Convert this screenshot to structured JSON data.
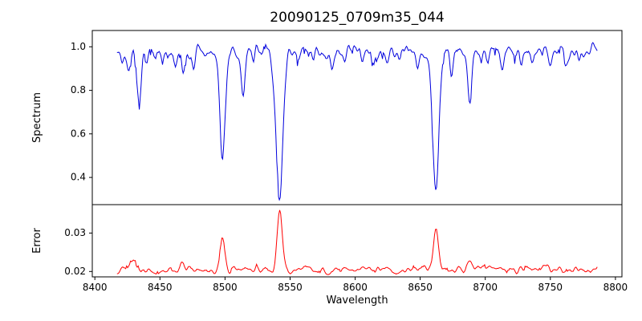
{
  "chart_data": {
    "type": "line",
    "title": "20090125_0709m35_044",
    "xlabel": "Wavelength",
    "x_axis_range": [
      8398,
      8805
    ],
    "data_x_range": [
      8417,
      8786
    ],
    "x_ticks": [
      8400,
      8450,
      8500,
      8550,
      8600,
      8650,
      8700,
      8750,
      8800
    ],
    "x_tick_labels": [
      "8400",
      "8450",
      "8500",
      "8550",
      "8600",
      "8650",
      "8700",
      "8750",
      "8800"
    ],
    "legend": "none",
    "grid": false,
    "subplots": [
      {
        "name": "spectrum",
        "ylabel": "Spectrum",
        "line_color": "#0000dd",
        "y_axis_range": [
          0.275,
          1.075
        ],
        "y_ticks": [
          0.4,
          0.6,
          0.8,
          1.0
        ],
        "y_tick_labels": [
          "0.4",
          "0.6",
          "0.8",
          "1.0"
        ],
        "continuum_level": 0.975,
        "noise_amplitude": 0.015,
        "absorption_features_format": "center_angstrom, depth, sigma_angstrom",
        "absorption_features": [
          [
            8421,
            0.05,
            1.0
          ],
          [
            8426,
            0.1,
            1.2
          ],
          [
            8434,
            0.225,
            1.5
          ],
          [
            8440,
            0.06,
            1.0
          ],
          [
            8452,
            0.055,
            1.1
          ],
          [
            8462,
            0.05,
            1.0
          ],
          [
            8468,
            0.09,
            1.2
          ],
          [
            8476,
            0.05,
            1.0
          ],
          [
            8484,
            0.04,
            1.0
          ],
          [
            8498,
            0.48,
            2.0
          ],
          [
            8514,
            0.165,
            1.4
          ],
          [
            8522,
            0.05,
            1.0
          ],
          [
            8536,
            0.04,
            1.0
          ],
          [
            8542,
            0.66,
            2.6
          ],
          [
            8556,
            0.05,
            1.0
          ],
          [
            8568,
            0.04,
            1.0
          ],
          [
            8582,
            0.065,
            1.2
          ],
          [
            8592,
            0.05,
            1.0
          ],
          [
            8605,
            0.04,
            1.0
          ],
          [
            8614,
            0.05,
            1.0
          ],
          [
            8624,
            0.045,
            1.0
          ],
          [
            8634,
            0.04,
            1.0
          ],
          [
            8648,
            0.05,
            1.0
          ],
          [
            8662,
            0.625,
            2.4
          ],
          [
            8674,
            0.11,
            1.2
          ],
          [
            8688,
            0.195,
            1.5
          ],
          [
            8702,
            0.05,
            1.0
          ],
          [
            8713,
            0.095,
            1.2
          ],
          [
            8728,
            0.04,
            1.0
          ],
          [
            8736,
            0.055,
            1.1
          ],
          [
            8750,
            0.04,
            1.0
          ],
          [
            8762,
            0.05,
            1.0
          ],
          [
            8772,
            0.04,
            1.0
          ]
        ]
      },
      {
        "name": "error",
        "ylabel": "Error",
        "line_color": "#ff0000",
        "y_axis_range": [
          0.0186,
          0.0374
        ],
        "y_ticks": [
          0.02,
          0.03
        ],
        "y_tick_labels": [
          "0.02",
          "0.03"
        ],
        "baseline_level": 0.0205,
        "noise_amplitude": 0.0006,
        "peaks_format": "center_angstrom, height, sigma_angstrom",
        "peaks": [
          [
            8430,
            0.0022,
            2.0
          ],
          [
            8467,
            0.0012,
            1.8
          ],
          [
            8498,
            0.0085,
            1.8
          ],
          [
            8542,
            0.0158,
            1.9
          ],
          [
            8662,
            0.0115,
            1.8
          ],
          [
            8688,
            0.0014,
            1.8
          ]
        ]
      }
    ]
  }
}
